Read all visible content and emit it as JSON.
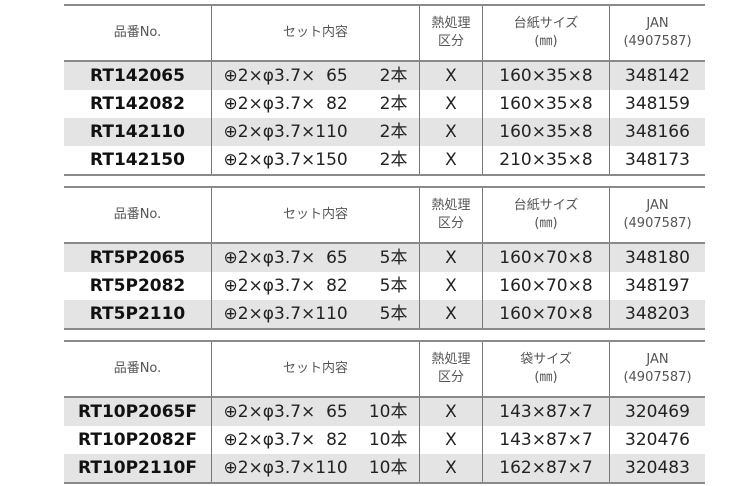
{
  "tables": [
    {
      "headers": [
        "品番No.",
        "セット内容",
        "熱処理\n区分",
        "台紙サイズ\n(㎜)",
        "JAN\n(4907587)"
      ],
      "rows": [
        {
          "part": "RT142065",
          "spec": "⊕2×φ3.7×  65",
          "count": "2本",
          "heat": "X",
          "size": "160×35×8",
          "jan": "348142"
        },
        {
          "part": "RT142082",
          "spec": "⊕2×φ3.7×  82",
          "count": "2本",
          "heat": "X",
          "size": "160×35×8",
          "jan": "348159"
        },
        {
          "part": "RT142110",
          "spec": "⊕2×φ3.7×110",
          "count": "2本",
          "heat": "X",
          "size": "160×35×8",
          "jan": "348166"
        },
        {
          "part": "RT142150",
          "spec": "⊕2×φ3.7×150",
          "count": "2本",
          "heat": "X",
          "size": "210×35×8",
          "jan": "348173"
        }
      ]
    },
    {
      "headers": [
        "品番No.",
        "セット内容",
        "熱処理\n区分",
        "台紙サイズ\n(㎜)",
        "JAN\n(4907587)"
      ],
      "rows": [
        {
          "part": "RT5P2065",
          "spec": "⊕2×φ3.7×  65",
          "count": "5本",
          "heat": "X",
          "size": "160×70×8",
          "jan": "348180"
        },
        {
          "part": "RT5P2082",
          "spec": "⊕2×φ3.7×  82",
          "count": "5本",
          "heat": "X",
          "size": "160×70×8",
          "jan": "348197"
        },
        {
          "part": "RT5P2110",
          "spec": "⊕2×φ3.7×110",
          "count": "5本",
          "heat": "X",
          "size": "160×70×8",
          "jan": "348203"
        }
      ]
    },
    {
      "headers": [
        "品番No.",
        "セット内容",
        "熱処理\n区分",
        "袋サイズ\n(㎜)",
        "JAN\n(4907587)"
      ],
      "rows": [
        {
          "part": "RT10P2065F",
          "spec": "⊕2×φ3.7×  65",
          "count": "10本",
          "heat": "X",
          "size": "143×87×7",
          "jan": "320469"
        },
        {
          "part": "RT10P2082F",
          "spec": "⊕2×φ3.7×  82",
          "count": "10本",
          "heat": "X",
          "size": "143×87×7",
          "jan": "320476"
        },
        {
          "part": "RT10P2110F",
          "spec": "⊕2×φ3.7×110",
          "count": "10本",
          "heat": "X",
          "size": "162×87×7",
          "jan": "320483"
        }
      ]
    }
  ]
}
